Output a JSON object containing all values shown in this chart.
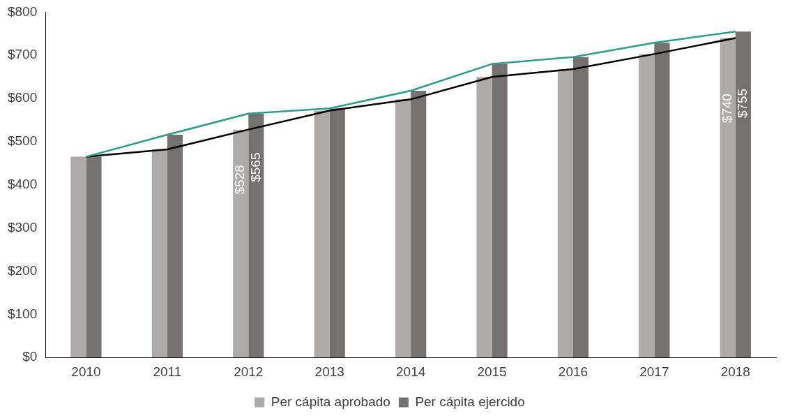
{
  "chart_data": {
    "type": "bar",
    "categories": [
      "2010",
      "2011",
      "2012",
      "2013",
      "2014",
      "2015",
      "2016",
      "2017",
      "2018"
    ],
    "series": [
      {
        "name": "Per cápita aprobado",
        "color": "#aeaaaa",
        "values": [
          465,
          482,
          528,
          572,
          598,
          650,
          668,
          703,
          740
        ],
        "value_labels": [
          null,
          null,
          "$528",
          null,
          null,
          null,
          null,
          null,
          "$740"
        ]
      },
      {
        "name": "Per cápita ejercido",
        "color": "#767171",
        "values": [
          465,
          516,
          565,
          577,
          618,
          680,
          696,
          729,
          755
        ],
        "value_labels": [
          null,
          null,
          "$565",
          null,
          null,
          null,
          null,
          null,
          "$755"
        ]
      },
      {
        "type": "line",
        "color": "#2e9c8a",
        "values": [
          465,
          516,
          565,
          577,
          618,
          680,
          696,
          729,
          755
        ]
      },
      {
        "type": "line",
        "color": "#000000",
        "values": [
          465,
          482,
          528,
          572,
          598,
          650,
          668,
          703,
          740
        ]
      }
    ],
    "ylim": [
      0,
      800
    ],
    "yticks": [
      {
        "value": 0,
        "label": "$0"
      },
      {
        "value": 100,
        "label": "$100"
      },
      {
        "value": 200,
        "label": "$200"
      },
      {
        "value": 300,
        "label": "$300"
      },
      {
        "value": 400,
        "label": "$400"
      },
      {
        "value": 500,
        "label": "$500"
      },
      {
        "value": 600,
        "label": "$600"
      },
      {
        "value": 700,
        "label": "$700"
      },
      {
        "value": 800,
        "label": "$800"
      }
    ],
    "grid": false,
    "legend": "bottom",
    "marker": "none",
    "line_style": "solid"
  }
}
